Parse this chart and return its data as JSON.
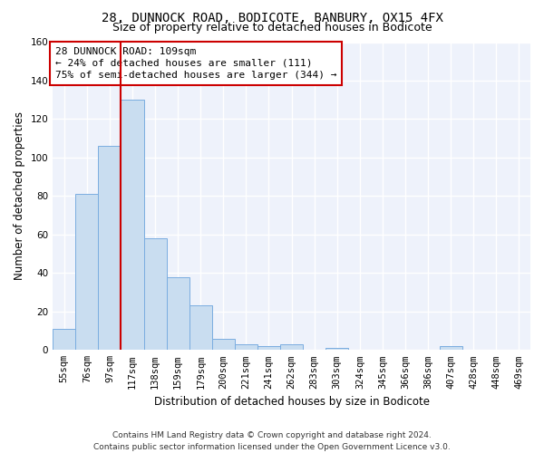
{
  "title_line1": "28, DUNNOCK ROAD, BODICOTE, BANBURY, OX15 4FX",
  "title_line2": "Size of property relative to detached houses in Bodicote",
  "xlabel": "Distribution of detached houses by size in Bodicote",
  "ylabel": "Number of detached properties",
  "bar_color": "#c9ddf0",
  "bar_edge_color": "#7aade0",
  "categories": [
    "55sqm",
    "76sqm",
    "97sqm",
    "117sqm",
    "138sqm",
    "159sqm",
    "179sqm",
    "200sqm",
    "221sqm",
    "241sqm",
    "262sqm",
    "283sqm",
    "303sqm",
    "324sqm",
    "345sqm",
    "366sqm",
    "386sqm",
    "407sqm",
    "428sqm",
    "448sqm",
    "469sqm"
  ],
  "values": [
    11,
    81,
    106,
    130,
    58,
    38,
    23,
    6,
    3,
    2,
    3,
    0,
    1,
    0,
    0,
    0,
    0,
    2,
    0,
    0,
    0
  ],
  "ylim": [
    0,
    160
  ],
  "yticks": [
    0,
    20,
    40,
    60,
    80,
    100,
    120,
    140,
    160
  ],
  "annotation_line1": "28 DUNNOCK ROAD: 109sqm",
  "annotation_line2": "← 24% of detached houses are smaller (111)",
  "annotation_line3": "75% of semi-detached houses are larger (344) →",
  "vline_color": "#cc0000",
  "vline_x": 2.5,
  "footer_line1": "Contains HM Land Registry data © Crown copyright and database right 2024.",
  "footer_line2": "Contains public sector information licensed under the Open Government Licence v3.0.",
  "background_color": "#eef2fb",
  "grid_color": "#ffffff",
  "title_fontsize": 10,
  "subtitle_fontsize": 9,
  "axis_label_fontsize": 8.5,
  "tick_fontsize": 7.5,
  "annotation_fontsize": 8,
  "footer_fontsize": 6.5
}
